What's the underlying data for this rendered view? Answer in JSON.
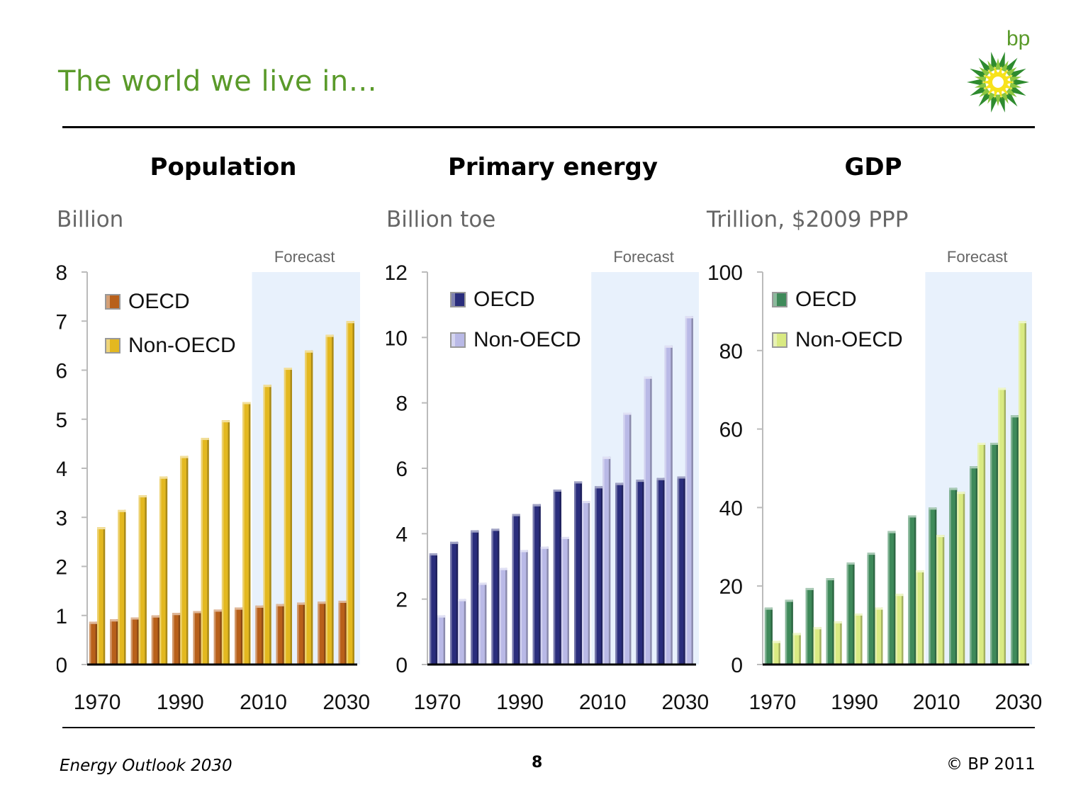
{
  "slide": {
    "title": "The world we live in…",
    "footer_left": "Energy Outlook 2030",
    "page_number": "8",
    "copyright": "© BP 2011",
    "logo_text": "bp"
  },
  "colors": {
    "title_green": "#5a9a2a",
    "forecast_shade": "#e8f1fc"
  },
  "chart_data": [
    {
      "type": "bar",
      "title": "Population",
      "ylabel": "Billion",
      "forecast_label": "Forecast",
      "ylim": [
        0,
        8
      ],
      "yticks": [
        0,
        1,
        2,
        3,
        4,
        5,
        6,
        7,
        8
      ],
      "x_tick_labels": [
        "1970",
        "1990",
        "2010",
        "2030"
      ],
      "categories": [
        1970,
        1975,
        1980,
        1985,
        1990,
        1995,
        2000,
        2005,
        2010,
        2015,
        2020,
        2025,
        2030
      ],
      "forecast_from": 2010,
      "series": [
        {
          "name": "OECD",
          "color": "#b8601a",
          "values": [
            0.87,
            0.92,
            0.96,
            1.0,
            1.05,
            1.09,
            1.12,
            1.16,
            1.2,
            1.23,
            1.26,
            1.28,
            1.3
          ]
        },
        {
          "name": "Non-OECD",
          "color": "#e3b820",
          "values": [
            2.8,
            3.15,
            3.45,
            3.83,
            4.25,
            4.62,
            4.98,
            5.35,
            5.7,
            6.05,
            6.4,
            6.72,
            7.0
          ]
        }
      ]
    },
    {
      "type": "bar",
      "title": "Primary energy",
      "ylabel": "Billion toe",
      "forecast_label": "Forecast",
      "ylim": [
        0,
        12
      ],
      "yticks": [
        0,
        2,
        4,
        6,
        8,
        10,
        12
      ],
      "x_tick_labels": [
        "1970",
        "1990",
        "2010",
        "2030"
      ],
      "categories": [
        1970,
        1975,
        1980,
        1985,
        1990,
        1995,
        2000,
        2005,
        2010,
        2015,
        2020,
        2025,
        2030
      ],
      "forecast_from": 2010,
      "series": [
        {
          "name": "OECD",
          "color": "#2a2d7c",
          "values": [
            3.4,
            3.75,
            4.1,
            4.15,
            4.6,
            4.9,
            5.35,
            5.6,
            5.45,
            5.55,
            5.65,
            5.7,
            5.75
          ]
        },
        {
          "name": "Non-OECD",
          "color": "#b9b9e6",
          "values": [
            1.5,
            2.0,
            2.5,
            2.95,
            3.5,
            3.6,
            3.9,
            5.0,
            6.35,
            7.7,
            8.8,
            9.75,
            10.65
          ]
        }
      ]
    },
    {
      "type": "bar",
      "title": "GDP",
      "ylabel": "Trillion, $2009 PPP",
      "forecast_label": "Forecast",
      "ylim": [
        0,
        100
      ],
      "yticks": [
        0,
        20,
        40,
        60,
        80,
        100
      ],
      "x_tick_labels": [
        "1970",
        "1990",
        "2010",
        "2030"
      ],
      "categories": [
        1970,
        1975,
        1980,
        1985,
        1990,
        1995,
        2000,
        2005,
        2010,
        2015,
        2020,
        2025,
        2030
      ],
      "forecast_from": 2010,
      "series": [
        {
          "name": "OECD",
          "color": "#3f8a5a",
          "values": [
            14.5,
            16.5,
            19.5,
            22,
            26,
            28.5,
            34,
            38,
            40,
            45,
            50.5,
            56.5,
            63.5
          ]
        },
        {
          "name": "Non-OECD",
          "color": "#d9ea82",
          "values": [
            6,
            8,
            9.5,
            11,
            13,
            14.5,
            18,
            24,
            33,
            44,
            56.5,
            70.5,
            87.5
          ]
        }
      ]
    }
  ]
}
